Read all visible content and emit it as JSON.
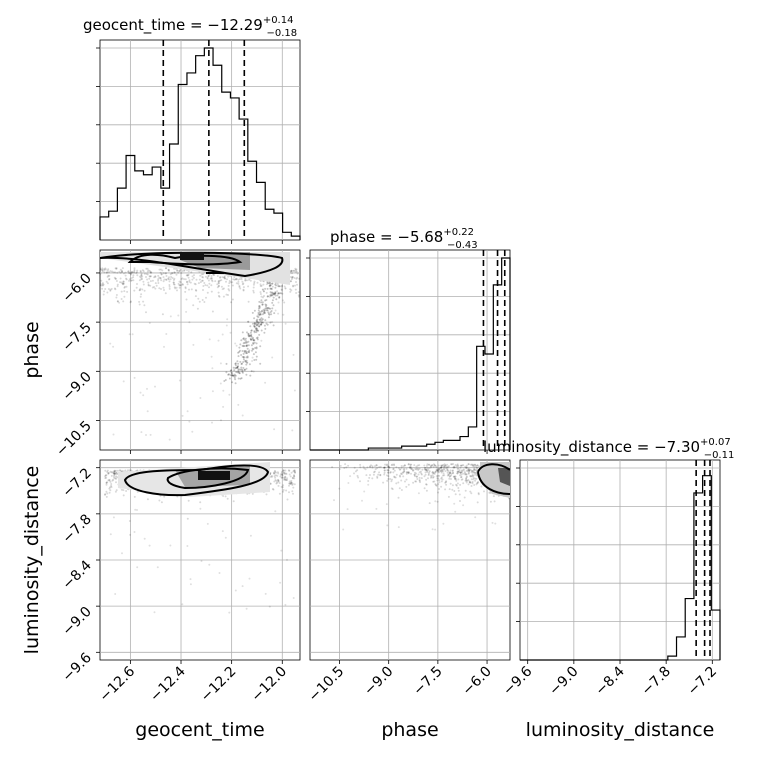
{
  "figure": {
    "type": "corner-plot",
    "parameters": [
      "geocent_time",
      "phase",
      "luminosity_distance"
    ]
  },
  "titles": {
    "geocent_time": {
      "label": "geocent_time",
      "median": "−12.29",
      "plus": "+0.14",
      "minus": "−0.18"
    },
    "phase": {
      "label": "phase",
      "median": "−5.68",
      "plus": "+0.22",
      "minus": "−0.43"
    },
    "luminosity_distance": {
      "label": "luminosity_distance",
      "median": "−7.30",
      "plus": "+0.07",
      "minus": "−0.11"
    }
  },
  "axes": {
    "xlabels": [
      "geocent_time",
      "phase",
      "luminosity_distance"
    ],
    "ylabels": [
      "phase",
      "luminosity_distance"
    ]
  },
  "chart_data": {
    "type": "corner",
    "grid": true,
    "parameters": [
      {
        "name": "geocent_time",
        "range": [
          -12.72,
          -11.93
        ],
        "ticks": [
          -12.6,
          -12.4,
          -12.2,
          -12.0
        ],
        "tick_labels": [
          "−12.6",
          "−12.4",
          "−12.2",
          "−12.0"
        ],
        "quantiles": [
          -12.47,
          -12.29,
          -12.15
        ],
        "hist": [
          0.12,
          0.15,
          0.27,
          0.44,
          0.36,
          0.34,
          0.38,
          0.27,
          0.5,
          0.81,
          0.87,
          0.96,
          1.0,
          0.91,
          0.77,
          0.74,
          0.63,
          0.41,
          0.3,
          0.16,
          0.14,
          0.04,
          0.02
        ]
      },
      {
        "name": "phase",
        "range": [
          -11.4,
          -5.3
        ],
        "ticks": [
          -10.5,
          -9.0,
          -7.5,
          -6.0
        ],
        "tick_labels": [
          "−10.5",
          "−9.0",
          "−7.5",
          "−6.0"
        ],
        "quantiles": [
          -6.11,
          -5.68,
          -5.46
        ],
        "hist": [
          0,
          0,
          0,
          0,
          0,
          0,
          0,
          0.01,
          0.01,
          0.01,
          0.01,
          0.02,
          0.02,
          0.02,
          0.03,
          0.04,
          0.05,
          0.05,
          0.07,
          0.12,
          0.54,
          0.5,
          0.86,
          1.0
        ]
      },
      {
        "name": "luminosity_distance",
        "range": [
          -9.7,
          -7.1
        ],
        "ticks": [
          -9.6,
          -9.0,
          -8.4,
          -7.8,
          -7.2
        ],
        "tick_labels": [
          "−9.6",
          "−9.0",
          "−8.4",
          "−7.8",
          "−7.2"
        ],
        "quantiles": [
          -7.41,
          -7.3,
          -7.23
        ],
        "hist": [
          0,
          0,
          0,
          0,
          0,
          0,
          0,
          0,
          0,
          0,
          0,
          0,
          0,
          0,
          0,
          0,
          0,
          0.02,
          0.12,
          0.32,
          0.87,
          0.96,
          0.26
        ]
      }
    ]
  }
}
